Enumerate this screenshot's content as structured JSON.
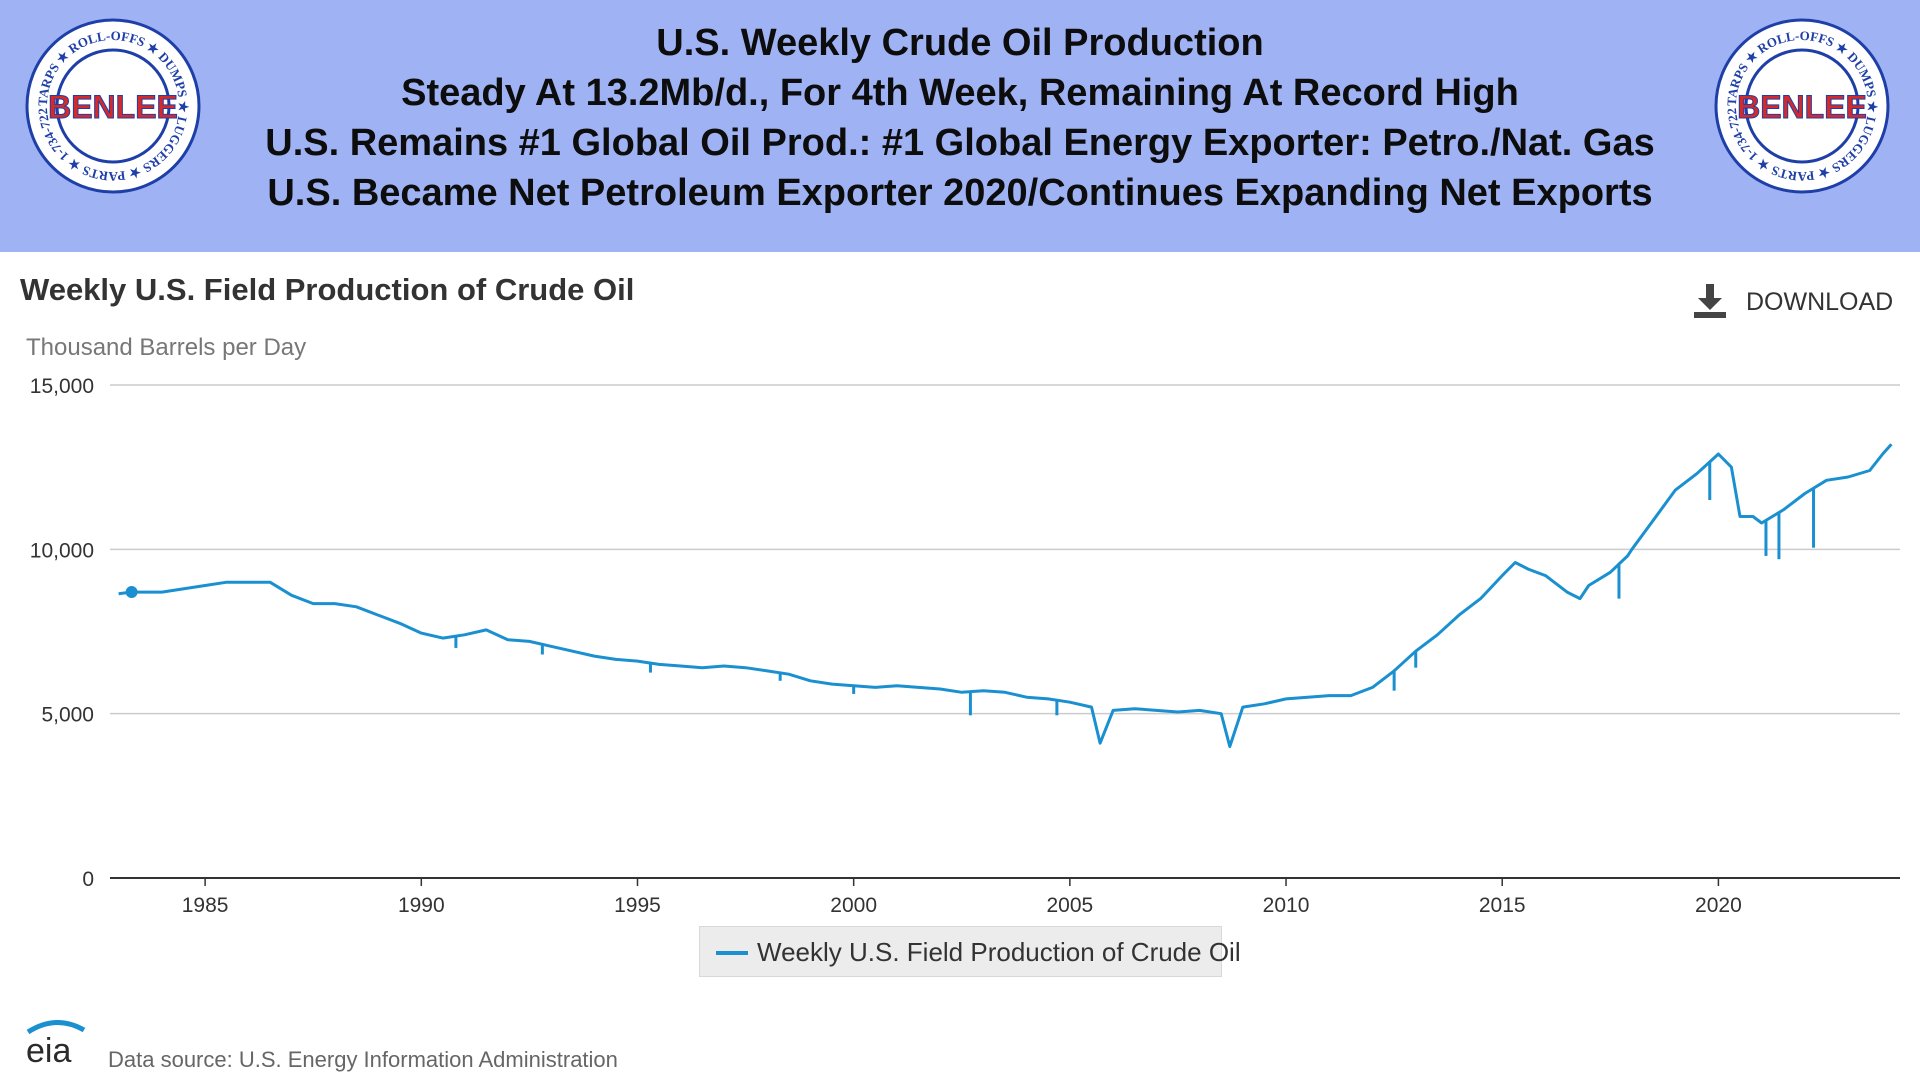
{
  "banner": {
    "lines": [
      "U.S. Weekly Crude Oil Production",
      "Steady At 13.2Mb/d., For 4th Week, Remaining At Record High",
      "U.S. Remains #1 Global Oil Prod.: #1 Global Energy Exporter: Petro./Nat. Gas",
      "U.S. Became Net Petroleum Exporter 2020/Continues Expanding Net Exports"
    ],
    "background": "#9fb3f4",
    "logo": {
      "name": "BENLEE",
      "ring_text": "TARPS ★ ROLL-OFFS ★ DUMPS ★ LUGGERS ★ PARTS ★ 1-734-722-8100 ★ BENLEE.COM",
      "text_color": "#d42a2a",
      "ring_color": "#1f3fa8"
    }
  },
  "download": {
    "label": "DOWNLOAD",
    "icon": "download-icon"
  },
  "source": {
    "text": "Data source: U.S. Energy Information Administration",
    "logo_text": "eia"
  },
  "chart_data": {
    "type": "line",
    "title": "Weekly U.S. Field Production of Crude Oil",
    "ylabel": "Thousand Barrels per Day",
    "xlabel": "",
    "ylim": [
      0,
      15000
    ],
    "xlim": [
      1982.8,
      2024.2
    ],
    "yticks": [
      0,
      5000,
      10000,
      15000
    ],
    "ytick_labels": [
      "0",
      "5,000",
      "10,000",
      "15,000"
    ],
    "xticks": [
      1985,
      1990,
      1995,
      2000,
      2005,
      2010,
      2015,
      2020
    ],
    "xtick_labels": [
      "1985",
      "1990",
      "1995",
      "2000",
      "2005",
      "2010",
      "2015",
      "2020"
    ],
    "grid": true,
    "legend_position": "bottom-center",
    "line_color": "#1a90d0",
    "series": [
      {
        "name": "Weekly U.S. Field Production of Crude Oil",
        "points": [
          [
            1983.0,
            8650
          ],
          [
            1983.3,
            8700
          ],
          [
            1984.0,
            8700
          ],
          [
            1985.0,
            8900
          ],
          [
            1985.5,
            9000
          ],
          [
            1986.0,
            9000
          ],
          [
            1986.5,
            9000
          ],
          [
            1987.0,
            8600
          ],
          [
            1987.5,
            8350
          ],
          [
            1988.0,
            8350
          ],
          [
            1988.5,
            8250
          ],
          [
            1989.0,
            8000
          ],
          [
            1989.5,
            7750
          ],
          [
            1990.0,
            7450
          ],
          [
            1990.5,
            7300
          ],
          [
            1991.0,
            7400
          ],
          [
            1991.5,
            7550
          ],
          [
            1992.0,
            7250
          ],
          [
            1992.5,
            7200
          ],
          [
            1993.0,
            7050
          ],
          [
            1993.5,
            6900
          ],
          [
            1994.0,
            6750
          ],
          [
            1994.5,
            6650
          ],
          [
            1995.0,
            6600
          ],
          [
            1995.5,
            6500
          ],
          [
            1996.0,
            6450
          ],
          [
            1996.5,
            6400
          ],
          [
            1997.0,
            6450
          ],
          [
            1997.5,
            6400
          ],
          [
            1998.0,
            6300
          ],
          [
            1998.5,
            6200
          ],
          [
            1999.0,
            6000
          ],
          [
            1999.5,
            5900
          ],
          [
            2000.0,
            5850
          ],
          [
            2000.5,
            5800
          ],
          [
            2001.0,
            5850
          ],
          [
            2001.5,
            5800
          ],
          [
            2002.0,
            5750
          ],
          [
            2002.5,
            5650
          ],
          [
            2003.0,
            5700
          ],
          [
            2003.5,
            5650
          ],
          [
            2004.0,
            5500
          ],
          [
            2004.5,
            5450
          ],
          [
            2005.0,
            5350
          ],
          [
            2005.5,
            5200
          ],
          [
            2005.7,
            4100
          ],
          [
            2006.0,
            5100
          ],
          [
            2006.5,
            5150
          ],
          [
            2007.0,
            5100
          ],
          [
            2007.5,
            5050
          ],
          [
            2008.0,
            5100
          ],
          [
            2008.5,
            5000
          ],
          [
            2008.7,
            4000
          ],
          [
            2009.0,
            5200
          ],
          [
            2009.5,
            5300
          ],
          [
            2010.0,
            5450
          ],
          [
            2010.5,
            5500
          ],
          [
            2011.0,
            5550
          ],
          [
            2011.5,
            5550
          ],
          [
            2012.0,
            5800
          ],
          [
            2012.5,
            6300
          ],
          [
            2013.0,
            6900
          ],
          [
            2013.5,
            7400
          ],
          [
            2014.0,
            8000
          ],
          [
            2014.5,
            8500
          ],
          [
            2015.0,
            9200
          ],
          [
            2015.3,
            9600
          ],
          [
            2015.6,
            9400
          ],
          [
            2016.0,
            9200
          ],
          [
            2016.5,
            8700
          ],
          [
            2016.8,
            8500
          ],
          [
            2017.0,
            8900
          ],
          [
            2017.5,
            9300
          ],
          [
            2017.9,
            9800
          ],
          [
            2018.0,
            10000
          ],
          [
            2018.5,
            10900
          ],
          [
            2019.0,
            11800
          ],
          [
            2019.5,
            12300
          ],
          [
            2020.0,
            12900
          ],
          [
            2020.3,
            12500
          ],
          [
            2020.5,
            11000
          ],
          [
            2020.8,
            11000
          ],
          [
            2021.0,
            10800
          ],
          [
            2021.5,
            11200
          ],
          [
            2022.0,
            11700
          ],
          [
            2022.5,
            12100
          ],
          [
            2023.0,
            12200
          ],
          [
            2023.5,
            12400
          ],
          [
            2023.8,
            12900
          ],
          [
            2024.0,
            13200
          ]
        ],
        "dips": [
          [
            1990.8,
            7000
          ],
          [
            1992.8,
            6800
          ],
          [
            1995.3,
            6250
          ],
          [
            1998.3,
            6000
          ],
          [
            2000.0,
            5600
          ],
          [
            2002.7,
            4950
          ],
          [
            2004.7,
            4950
          ],
          [
            2012.5,
            5700
          ],
          [
            2013.0,
            6400
          ],
          [
            2017.7,
            8500
          ],
          [
            2019.8,
            11500
          ],
          [
            2021.1,
            9800
          ],
          [
            2021.4,
            9700
          ],
          [
            2022.2,
            10050
          ]
        ],
        "marker": [
          1983.3,
          8700
        ]
      }
    ]
  }
}
